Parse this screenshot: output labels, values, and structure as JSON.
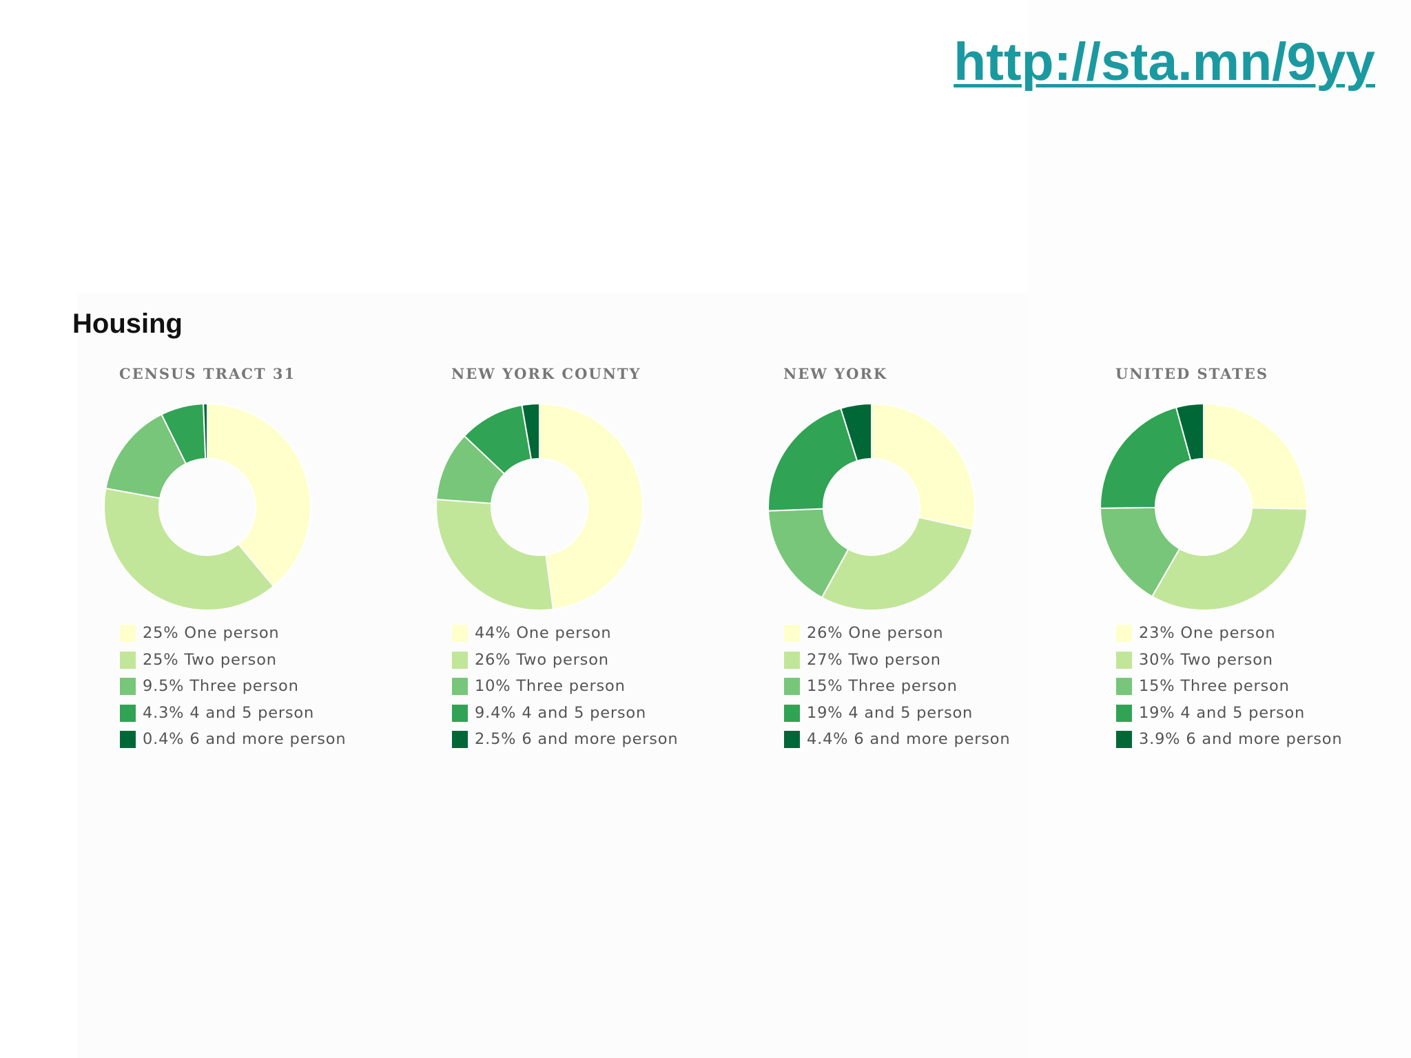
{
  "link": "http://sta.mn/9yy",
  "section_title": "Housing",
  "colors": [
    "#ffffcc",
    "#c2e699",
    "#78c679",
    "#31a354",
    "#006837"
  ],
  "chart_data": [
    {
      "type": "pie",
      "title": "CENSUS TRACT 31",
      "categories": [
        "One person",
        "Two person",
        "Three person",
        "4 and 5 person",
        "6 and more person"
      ],
      "values": [
        25,
        25,
        9.5,
        4.3,
        0.4
      ],
      "labels": [
        "25% One person",
        "25% Two person",
        "9.5% Three person",
        "4.3% 4 and 5 person",
        "0.4% 6 and more person"
      ],
      "legend": "bottom"
    },
    {
      "type": "pie",
      "title": "NEW YORK COUNTY",
      "categories": [
        "One person",
        "Two person",
        "Three person",
        "4 and 5 person",
        "6 and more person"
      ],
      "values": [
        44,
        26,
        10,
        9.4,
        2.5
      ],
      "labels": [
        "44% One person",
        "26% Two person",
        "10% Three person",
        "9.4% 4 and 5 person",
        "2.5% 6 and more person"
      ],
      "legend": "bottom"
    },
    {
      "type": "pie",
      "title": "NEW YORK",
      "categories": [
        "One person",
        "Two person",
        "Three person",
        "4 and 5 person",
        "6 and more person"
      ],
      "values": [
        26,
        27,
        15,
        19,
        4.4
      ],
      "labels": [
        "26% One person",
        "27% Two person",
        "15% Three person",
        "19% 4 and 5 person",
        "4.4% 6 and more person"
      ],
      "legend": "bottom"
    },
    {
      "type": "pie",
      "title": "UNITED STATES",
      "categories": [
        "One person",
        "Two person",
        "Three person",
        "4 and 5 person",
        "6 and more person"
      ],
      "values": [
        23,
        30,
        15,
        19,
        3.9
      ],
      "labels": [
        "23% One person",
        "30% Two person",
        "15% Three person",
        "19% 4 and 5 person",
        "3.9% 6 and more person"
      ],
      "legend": "bottom"
    }
  ]
}
